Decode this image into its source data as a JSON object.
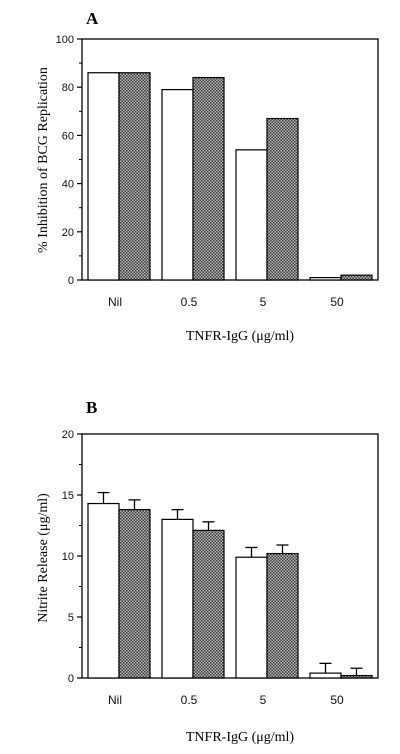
{
  "chart_data": [
    {
      "type": "bar",
      "panel_label": "A",
      "title": "",
      "xlabel": "TNFR-IgG (μg/ml)",
      "ylabel": "% Inhibition of BCG Replication",
      "categories": [
        "Nil",
        "0.5",
        "5",
        "50"
      ],
      "series": [
        {
          "values": [
            86,
            79,
            54,
            1
          ],
          "color": "#ffffff"
        },
        {
          "values": [
            86,
            84,
            67,
            2
          ],
          "color": "#8c8c8c"
        }
      ],
      "ylim": [
        0,
        100
      ],
      "yticks": [
        "0",
        "20",
        "40",
        "60",
        "80",
        "100"
      ],
      "grid": false,
      "legend": "none"
    },
    {
      "type": "bar",
      "panel_label": "B",
      "title": "",
      "xlabel": "TNFR-IgG (μg/ml)",
      "ylabel": "Nitrite Release (μg/ml)",
      "categories": [
        "Nil",
        "0.5",
        "5",
        "50"
      ],
      "series": [
        {
          "values": [
            14.3,
            13.0,
            9.9,
            0.4
          ],
          "errors": [
            0.9,
            0.8,
            0.8,
            0.8
          ],
          "color": "#ffffff"
        },
        {
          "values": [
            13.8,
            12.1,
            10.2,
            0.2
          ],
          "errors": [
            0.8,
            0.7,
            0.7,
            0.6
          ],
          "color": "#8c8c8c"
        }
      ],
      "ylim": [
        0,
        20
      ],
      "yticks": [
        "0",
        "5",
        "10",
        "15",
        "20"
      ],
      "grid": false,
      "legend": "none"
    }
  ]
}
